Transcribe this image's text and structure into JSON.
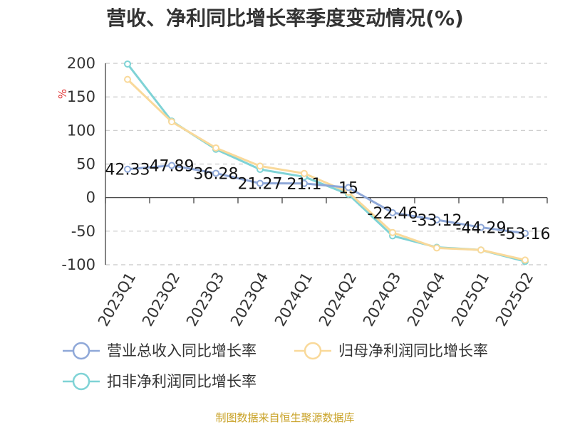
{
  "title": "营收、净利同比增长率季度变动情况(%)",
  "source": "制图数据来自恒生聚源数据库",
  "chart_data": {
    "type": "line",
    "title": "营收、净利同比增长率季度变动情况(%)",
    "ylabel": "%",
    "ylim": [
      -100,
      200
    ],
    "yticks": [
      200,
      150,
      100,
      50,
      0,
      -50,
      -100
    ],
    "grid": true,
    "legend_position": "bottom",
    "categories": [
      "2023Q1",
      "2023Q2",
      "2023Q3",
      "2023Q4",
      "2024Q1",
      "2024Q2",
      "2024Q3",
      "2024Q4",
      "2025Q1",
      "2025Q2"
    ],
    "series": [
      {
        "name": "营业总收入同比增长率",
        "color": "#8fa8d8",
        "labeled": true,
        "values": [
          42.33,
          47.89,
          36.28,
          21.27,
          21.1,
          15,
          -22.46,
          -33.12,
          -44.29,
          -53.16
        ]
      },
      {
        "name": "归母净利润同比增长率",
        "color": "#f9d99a",
        "labeled": false,
        "values": [
          176,
          113,
          74,
          47,
          36,
          8,
          -52,
          -75,
          -78,
          -93
        ]
      },
      {
        "name": "扣非净利润同比增长率",
        "color": "#7fd3d6",
        "labeled": false,
        "values": [
          199,
          114,
          72,
          42,
          31,
          5,
          -57,
          -74,
          -78,
          -95
        ]
      }
    ],
    "data_labels": [
      "42.33",
      "47.89",
      "36.28",
      "21.27",
      "21.1",
      "15",
      "-22.46",
      "-33.12",
      "-44.29",
      "-53.16"
    ]
  }
}
